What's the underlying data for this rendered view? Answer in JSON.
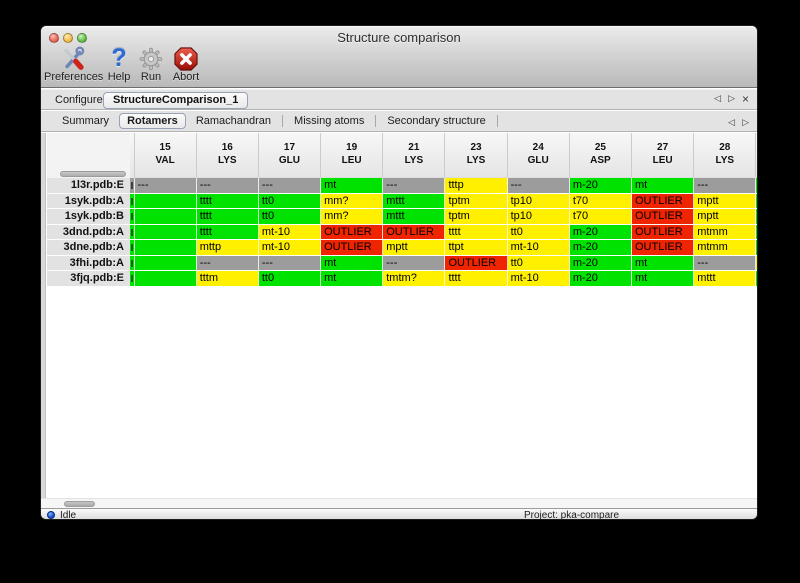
{
  "window": {
    "title": "Structure comparison"
  },
  "toolbar": {
    "buttons": [
      {
        "label": "Preferences",
        "icon": "tools-icon"
      },
      {
        "label": "Help",
        "icon": "question-mark-icon"
      },
      {
        "label": "Run",
        "icon": "gear-icon"
      },
      {
        "label": "Abort",
        "icon": "stop-icon"
      }
    ]
  },
  "configure": {
    "label": "Configure",
    "selected_job": "StructureComparison_1",
    "nav": {
      "prev": "◁",
      "next": "▷",
      "close": "×"
    }
  },
  "tabs": {
    "items": [
      {
        "label": "Summary",
        "selected": false
      },
      {
        "label": "Rotamers",
        "selected": true
      },
      {
        "label": "Ramachandran",
        "selected": false
      },
      {
        "label": "Missing atoms",
        "selected": false
      },
      {
        "label": "Secondary structure",
        "selected": false
      }
    ],
    "nav": {
      "prev": "◁",
      "next": "▷"
    }
  },
  "table": {
    "columns": [
      {
        "num": "15",
        "res": "VAL"
      },
      {
        "num": "16",
        "res": "LYS"
      },
      {
        "num": "17",
        "res": "GLU"
      },
      {
        "num": "19",
        "res": "LEU"
      },
      {
        "num": "21",
        "res": "LYS"
      },
      {
        "num": "23",
        "res": "LYS"
      },
      {
        "num": "24",
        "res": "GLU"
      },
      {
        "num": "25",
        "res": "ASP"
      },
      {
        "num": "27",
        "res": "LEU"
      },
      {
        "num": "28",
        "res": "LYS"
      }
    ],
    "rows": [
      {
        "name": "1l3r.pdb:E",
        "cells": [
          {
            "t": "---",
            "c": "gray"
          },
          {
            "t": "---",
            "c": "gray"
          },
          {
            "t": "---",
            "c": "gray"
          },
          {
            "t": "mt",
            "c": "green"
          },
          {
            "t": "---",
            "c": "gray"
          },
          {
            "t": "tttp",
            "c": "yellow"
          },
          {
            "t": "---",
            "c": "gray"
          },
          {
            "t": "m-20",
            "c": "green"
          },
          {
            "t": "mt",
            "c": "green"
          },
          {
            "t": "---",
            "c": "gray"
          }
        ]
      },
      {
        "name": "1syk.pdb:A",
        "cells": [
          {
            "t": "",
            "c": "green"
          },
          {
            "t": "tttt",
            "c": "green"
          },
          {
            "t": "tt0",
            "c": "green"
          },
          {
            "t": "mm?",
            "c": "yellow"
          },
          {
            "t": "mttt",
            "c": "green"
          },
          {
            "t": "tptm",
            "c": "yellow"
          },
          {
            "t": "tp10",
            "c": "yellow"
          },
          {
            "t": "t70",
            "c": "yellow"
          },
          {
            "t": "OUTLIER",
            "c": "red"
          },
          {
            "t": "mptt",
            "c": "yellow"
          }
        ]
      },
      {
        "name": "1syk.pdb:B",
        "cells": [
          {
            "t": "",
            "c": "green"
          },
          {
            "t": "tttt",
            "c": "green"
          },
          {
            "t": "tt0",
            "c": "green"
          },
          {
            "t": "mm?",
            "c": "yellow"
          },
          {
            "t": "mttt",
            "c": "green"
          },
          {
            "t": "tptm",
            "c": "yellow"
          },
          {
            "t": "tp10",
            "c": "yellow"
          },
          {
            "t": "t70",
            "c": "yellow"
          },
          {
            "t": "OUTLIER",
            "c": "red"
          },
          {
            "t": "mptt",
            "c": "yellow"
          }
        ]
      },
      {
        "name": "3dnd.pdb:A",
        "cells": [
          {
            "t": "",
            "c": "green"
          },
          {
            "t": "tttt",
            "c": "green"
          },
          {
            "t": "mt-10",
            "c": "yellow"
          },
          {
            "t": "OUTLIER",
            "c": "red"
          },
          {
            "t": "OUTLIER",
            "c": "red"
          },
          {
            "t": "tttt",
            "c": "yellow"
          },
          {
            "t": "tt0",
            "c": "yellow"
          },
          {
            "t": "m-20",
            "c": "green"
          },
          {
            "t": "OUTLIER",
            "c": "red"
          },
          {
            "t": "mtmm",
            "c": "yellow"
          }
        ]
      },
      {
        "name": "3dne.pdb:A",
        "cells": [
          {
            "t": "",
            "c": "green"
          },
          {
            "t": "mttp",
            "c": "yellow"
          },
          {
            "t": "mt-10",
            "c": "yellow"
          },
          {
            "t": "OUTLIER",
            "c": "red"
          },
          {
            "t": "mptt",
            "c": "yellow"
          },
          {
            "t": "ttpt",
            "c": "yellow"
          },
          {
            "t": "mt-10",
            "c": "yellow"
          },
          {
            "t": "m-20",
            "c": "green"
          },
          {
            "t": "OUTLIER",
            "c": "red"
          },
          {
            "t": "mtmm",
            "c": "yellow"
          }
        ]
      },
      {
        "name": "3fhi.pdb:A",
        "cells": [
          {
            "t": "",
            "c": "green"
          },
          {
            "t": "---",
            "c": "gray"
          },
          {
            "t": "---",
            "c": "gray"
          },
          {
            "t": "mt",
            "c": "green"
          },
          {
            "t": "---",
            "c": "gray"
          },
          {
            "t": "OUTLIER",
            "c": "red"
          },
          {
            "t": "tt0",
            "c": "yellow"
          },
          {
            "t": "m-20",
            "c": "green"
          },
          {
            "t": "mt",
            "c": "green"
          },
          {
            "t": "---",
            "c": "gray"
          }
        ]
      },
      {
        "name": "3fjq.pdb:E",
        "cells": [
          {
            "t": "",
            "c": "green"
          },
          {
            "t": "tttm",
            "c": "yellow"
          },
          {
            "t": "tt0",
            "c": "green"
          },
          {
            "t": "mt",
            "c": "green"
          },
          {
            "t": "tmtm?",
            "c": "yellow"
          },
          {
            "t": "tttt",
            "c": "yellow"
          },
          {
            "t": "mt-10",
            "c": "yellow"
          },
          {
            "t": "m-20",
            "c": "green"
          },
          {
            "t": "mt",
            "c": "green"
          },
          {
            "t": "mttt",
            "c": "yellow"
          }
        ]
      }
    ],
    "partial_left_column": {
      "cell_colors": [
        "gray",
        "green",
        "green",
        "green",
        "green",
        "green",
        "green"
      ]
    },
    "partial_right_column": {
      "cell_colors": [
        "green",
        "green",
        "green",
        "green",
        "green",
        "yellow",
        "green"
      ]
    }
  },
  "statusbar": {
    "status": "Idle",
    "project": "Project: pka-compare"
  },
  "colors": {
    "green": "#00e300",
    "yellow": "#fff000",
    "red": "#ee2500",
    "gray": "#9c9c9c"
  }
}
